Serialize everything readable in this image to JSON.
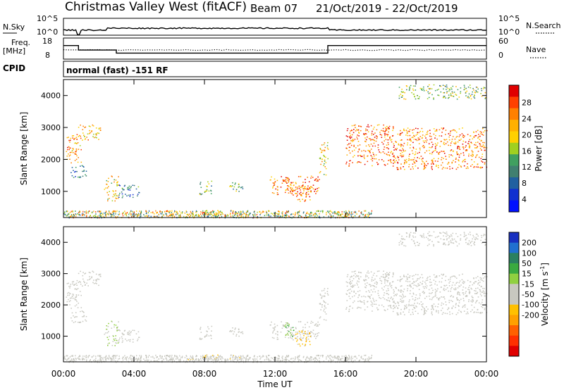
{
  "title": {
    "station": "Christmas Valley West (fitACF)",
    "beam": "Beam 07",
    "dates": "21/Oct/2019 - 22/Oct/2019"
  },
  "noise_panel": {
    "left_label": "N.Sky",
    "right_label": "N.Search",
    "left_ticks": [
      "10^5",
      "10^0"
    ],
    "right_ticks": [
      "10^5",
      "10^0"
    ]
  },
  "freq_panel": {
    "left_label_1": "Freq.",
    "left_label_2": "[MHz]",
    "right_label": "Nave",
    "left_ticks": [
      "18",
      "8"
    ],
    "right_ticks": [
      "60",
      "0"
    ]
  },
  "cpid_panel": {
    "label": "CPID",
    "program": "normal (fast) -151 RF"
  },
  "power_panel": {
    "ylabel": "Slant Range [km]",
    "yticks": [
      "4000",
      "3000",
      "2000",
      "1000"
    ],
    "colorbar_label": "Power [dB]",
    "colorbar_ticks": [
      "28",
      "24",
      "20",
      "16",
      "12",
      "8",
      "4"
    ],
    "colorbar_colors": [
      "#e00000",
      "#ff4000",
      "#ff8000",
      "#ffb000",
      "#ffd000",
      "#a0d020",
      "#40a060",
      "#408070",
      "#2060a0",
      "#1030d0",
      "#0010ff"
    ]
  },
  "velocity_panel": {
    "ylabel": "Slant Range [km]",
    "yticks": [
      "4000",
      "3000",
      "2000",
      "1000"
    ],
    "colorbar_label": "Velocity [m s",
    "colorbar_label_sup": "-1",
    "colorbar_label_end": "]",
    "colorbar_ticks": [
      "200",
      "100",
      "50",
      "15",
      "-15",
      "-50",
      "-100",
      "-200"
    ],
    "colorbar_colors": [
      "#1830c0",
      "#2070d0",
      "#2a8060",
      "#3aaa40",
      "#90d040",
      "#c8c8c0",
      "#c8c8c0",
      "#ffc000",
      "#ffa000",
      "#ff6000",
      "#ff3000",
      "#e00000"
    ]
  },
  "x_axis": {
    "label": "Time UT",
    "ticks": [
      "00:00",
      "04:00",
      "08:00",
      "12:00",
      "16:00",
      "20:00",
      "00:00"
    ]
  },
  "chart_data": {
    "type": "heatmap",
    "title": "Christmas Valley West (fitACF) Beam 07 21/Oct/2019 - 22/Oct/2019",
    "xlabel": "Time UT",
    "ylabel": "Slant Range [km]",
    "xlim": [
      0,
      24
    ],
    "ylim": [
      180,
      4500
    ],
    "power_dB_range": [
      0,
      30
    ],
    "velocity_range": [
      -250,
      250
    ],
    "frequency_MHz": [
      {
        "start": 0.0,
        "end": 0.85,
        "value": 15
      },
      {
        "start": 0.85,
        "end": 3.0,
        "value": 12
      },
      {
        "start": 3.0,
        "end": 15.0,
        "value": 10
      },
      {
        "start": 15.0,
        "end": 24.0,
        "value": 15
      }
    ],
    "scatter_regions": [
      {
        "t0": 0.1,
        "t1": 1.0,
        "r0": 1900,
        "r1": 2800,
        "power": 22,
        "velocity": 0
      },
      {
        "t0": 0.8,
        "t1": 2.1,
        "r0": 2600,
        "r1": 3100,
        "power": 20,
        "velocity": 0
      },
      {
        "t0": 0.4,
        "t1": 1.3,
        "r0": 1450,
        "r1": 1850,
        "power": 8,
        "velocity": 0
      },
      {
        "t0": 2.3,
        "t1": 3.1,
        "r0": 700,
        "r1": 1500,
        "power": 18,
        "velocity": 40
      },
      {
        "t0": 3.1,
        "t1": 4.3,
        "r0": 800,
        "r1": 1250,
        "power": 9,
        "velocity": 0
      },
      {
        "t0": 7.7,
        "t1": 8.4,
        "r0": 900,
        "r1": 1350,
        "power": 13,
        "velocity": 0
      },
      {
        "t0": 9.4,
        "t1": 10.2,
        "r0": 1000,
        "r1": 1300,
        "power": 12,
        "velocity": 0
      },
      {
        "t0": 11.6,
        "t1": 14.5,
        "r0": 900,
        "r1": 1500,
        "power": 24,
        "velocity": 0
      },
      {
        "t0": 12.5,
        "t1": 13.1,
        "r0": 1000,
        "r1": 1450,
        "power": 22,
        "velocity": 80
      },
      {
        "t0": 13.1,
        "t1": 14.0,
        "r0": 700,
        "r1": 1200,
        "power": 22,
        "velocity": -60
      },
      {
        "t0": 14.5,
        "t1": 15.0,
        "r0": 1500,
        "r1": 2600,
        "power": 18,
        "velocity": 0
      },
      {
        "t0": 16.0,
        "t1": 18.8,
        "r0": 1800,
        "r1": 3100,
        "power": 24,
        "velocity": 0
      },
      {
        "t0": 18.8,
        "t1": 24.0,
        "r0": 1700,
        "r1": 3000,
        "power": 23,
        "velocity": 0
      },
      {
        "t0": 19.0,
        "t1": 24.0,
        "r0": 3900,
        "r1": 4350,
        "power": 14,
        "velocity": 0
      },
      {
        "t0": 7.0,
        "t1": 10.0,
        "r0": 250,
        "r1": 420,
        "power": 20,
        "velocity": -40
      }
    ]
  }
}
